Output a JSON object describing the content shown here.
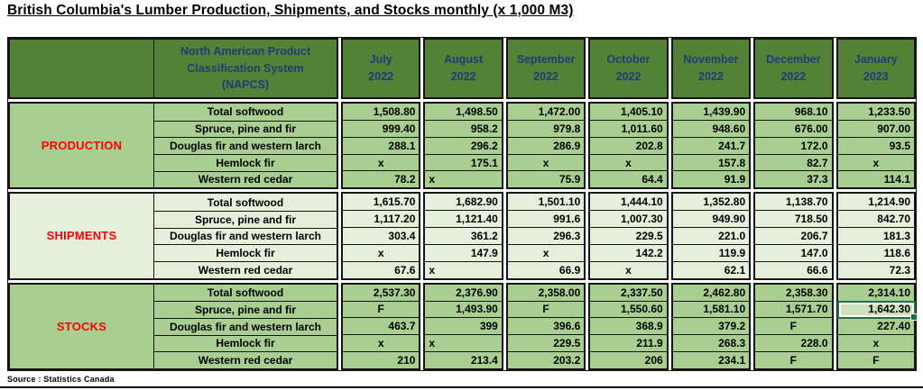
{
  "title": "British Columbia's Lumber Production, Shipments, and Stocks monthly (x 1,000 M3)",
  "source_note": "Source : Statistics Canada",
  "colors": {
    "header_bg": "#538135",
    "band_green": "#A9CE91",
    "band_pale": "#E6EFDC",
    "header_text_blue": "#1F3C78",
    "section_label_red": "#FF0000",
    "grid_border": "#141414",
    "selection_green": "#1E7145"
  },
  "table": {
    "napcs_header": "North American Product\nClassification System\n(NAPCS)",
    "months": [
      {
        "name": "July",
        "year": "2022"
      },
      {
        "name": "August",
        "year": "2022"
      },
      {
        "name": "September",
        "year": "2022"
      },
      {
        "name": "October",
        "year": "2022"
      },
      {
        "name": "November",
        "year": "2022"
      },
      {
        "name": "December",
        "year": "2022"
      },
      {
        "name": "January",
        "year": "2023"
      }
    ],
    "sections": [
      {
        "name": "PRODUCTION",
        "tone": "green",
        "rows": [
          {
            "label": "Total softwood",
            "values": [
              "1,508.80",
              "1,498.50",
              "1,472.00",
              "1,405.10",
              "1,439.90",
              "968.10",
              "1,233.50"
            ]
          },
          {
            "label": "Spruce, pine and fir",
            "values": [
              "999.40",
              "958.2",
              "979.8",
              "1,011.60",
              "948.60",
              "676.00",
              "907.00"
            ]
          },
          {
            "label": "Douglas fir and western larch",
            "values": [
              "288.1",
              "296.2",
              "286.9",
              "202.8",
              "241.7",
              "172.0",
              "93.5"
            ]
          },
          {
            "label": "Hemlock fir",
            "values": [
              "x",
              "175.1",
              "x",
              "x",
              "157.8",
              "82.7",
              "x"
            ]
          },
          {
            "label": "Western red cedar",
            "values": [
              "78.2",
              "x",
              "75.9",
              "64.4",
              "91.9",
              "37.3",
              "114.1"
            ],
            "left_cols": [
              1
            ]
          }
        ]
      },
      {
        "name": "SHIPMENTS",
        "tone": "pale",
        "rows": [
          {
            "label": "Total softwood",
            "values": [
              "1,615.70",
              "1,682.90",
              "1,501.10",
              "1,444.10",
              "1,352.80",
              "1,138.70",
              "1,214.90"
            ]
          },
          {
            "label": "Spruce, pine and fir",
            "values": [
              "1,117.20",
              "1,121.40",
              "991.6",
              "1,007.30",
              "949.90",
              "718.50",
              "842.70"
            ]
          },
          {
            "label": "Douglas fir and western larch",
            "values": [
              "303.4",
              "361.2",
              "296.3",
              "229.5",
              "221.0",
              "206.7",
              "181.3"
            ]
          },
          {
            "label": "Hemlock fir",
            "values": [
              "x",
              "147.9",
              "x",
              "142.2",
              "119.9",
              "147.0",
              "118.6"
            ]
          },
          {
            "label": "Western red cedar",
            "values": [
              "67.6",
              "x",
              "66.9",
              "x",
              "62.1",
              "66.6",
              "72.3"
            ],
            "left_cols": [
              1
            ]
          }
        ]
      },
      {
        "name": "STOCKS",
        "tone": "green",
        "rows": [
          {
            "label": "Total softwood",
            "values": [
              "2,537.30",
              "2,376.90",
              "2,358.00",
              "2,337.50",
              "2,462.80",
              "2,358.30",
              "2,314.10"
            ]
          },
          {
            "label": "Spruce, pine and fir",
            "values": [
              "F",
              "1,493.90",
              "F",
              "1,550.60",
              "1,581.10",
              "1,571.70",
              "1,642.30"
            ]
          },
          {
            "label": "Douglas fir and western larch",
            "values": [
              "463.7",
              "399",
              "396.6",
              "368.9",
              "379.2",
              "F",
              "227.40"
            ]
          },
          {
            "label": "Hemlock fir",
            "values": [
              "x",
              "x",
              "229.5",
              "211.9",
              "268.3",
              "228.0",
              "x"
            ],
            "left_cols": [
              1
            ]
          },
          {
            "label": "Western red cedar",
            "values": [
              "210",
              "213.4",
              "203.2",
              "206",
              "234.1",
              "F",
              "F"
            ]
          }
        ]
      }
    ],
    "selected_cell": {
      "section": 2,
      "row": 1,
      "col": 6,
      "value": "1,642.30"
    }
  }
}
